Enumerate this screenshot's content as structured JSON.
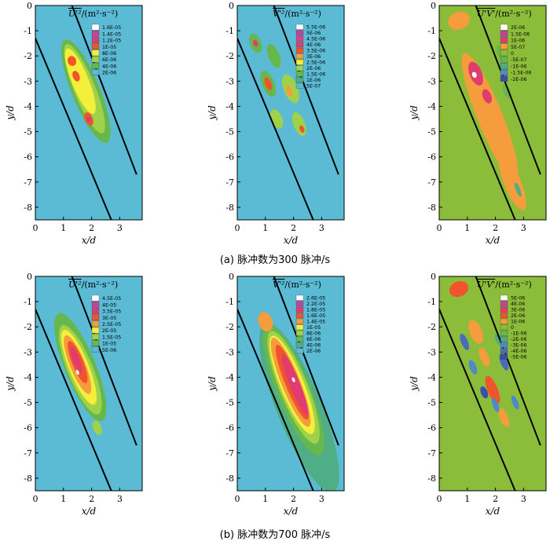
{
  "captions": {
    "a": "(a) 脉冲数为300 脉冲/s",
    "b": "(b) 脉冲数为700 脉冲/s"
  },
  "axes": {
    "xlabel": "x/d",
    "ylabel": "y/d"
  },
  "colors": {
    "plot_bg_uu_vv": "#5bbad4",
    "plot_bg_uv": "#8cbd3a",
    "boundary_line": "#000000"
  },
  "chart_data": [
    {
      "id": "a-uu",
      "type": "contour",
      "panel": "a",
      "quantity": "U'²",
      "legend_title": "/(m²·s⁻²)",
      "xlim": [
        0,
        3.8
      ],
      "ylim": [
        -8.5,
        0
      ],
      "xticks": [
        "0",
        "1",
        "2",
        "3"
      ],
      "yticks": [
        "0",
        "-1",
        "-2",
        "-3",
        "-4",
        "-5",
        "-6",
        "-7",
        "-8"
      ],
      "levels": [
        "1.6E-05",
        "1.4E-05",
        "1.2E-05",
        "1E-05",
        "8E-06",
        "6E-06",
        "4E-06",
        "2E-06"
      ],
      "level_colors": [
        "#ffffff",
        "#c0449c",
        "#e03c70",
        "#f0542c",
        "#f3ef3a",
        "#9fd24a",
        "#66b84c",
        "#5bbad4"
      ],
      "boundary_lines": [
        {
          "x": [
            0,
            2.7
          ],
          "y": [
            -1.3,
            -8.5
          ]
        },
        {
          "x": [
            1.3,
            3.6
          ],
          "y": [
            0,
            -6.7
          ]
        }
      ]
    },
    {
      "id": "a-vv",
      "type": "contour",
      "panel": "a",
      "quantity": "V'²",
      "legend_title": "/(m²·s⁻²)",
      "xlim": [
        0,
        3.8
      ],
      "ylim": [
        -8.5,
        0
      ],
      "xticks": [
        "0",
        "1",
        "2",
        "3"
      ],
      "yticks": [
        "0",
        "-1",
        "-2",
        "-3",
        "-4",
        "-5",
        "-6",
        "-7",
        "-8"
      ],
      "levels": [
        "5.5E-06",
        "5E-06",
        "4.5E-06",
        "4E-06",
        "3.5E-06",
        "3E-06",
        "2.5E-06",
        "2E-06",
        "1.5E-06",
        "1E-06",
        "5E-07"
      ],
      "level_colors": [
        "#ffffff",
        "#c0449c",
        "#d44688",
        "#e03c70",
        "#f0542c",
        "#f59c3c",
        "#f3ef3a",
        "#9fd24a",
        "#66b84c",
        "#4fae86",
        "#5bbad4"
      ],
      "boundary_lines": [
        {
          "x": [
            0,
            2.7
          ],
          "y": [
            -1.3,
            -8.5
          ]
        },
        {
          "x": [
            1.3,
            3.6
          ],
          "y": [
            0,
            -6.7
          ]
        }
      ]
    },
    {
      "id": "a-uv",
      "type": "contour",
      "panel": "a",
      "quantity": "U'V'",
      "legend_title": "/(m²·s⁻²)",
      "xlim": [
        0,
        3.8
      ],
      "ylim": [
        -8.5,
        0
      ],
      "xticks": [
        "0",
        "1",
        "2",
        "3"
      ],
      "yticks": [
        "0",
        "-1",
        "-2",
        "-3",
        "-4",
        "-5",
        "-6",
        "-7",
        "-8"
      ],
      "levels": [
        "2E-06",
        "1.5E-06",
        "1E-06",
        "5E-07",
        "0",
        "-5E-07",
        "-1E-06",
        "-1.5E-06",
        "-2E-06"
      ],
      "level_colors": [
        "#ffffff",
        "#c0449c",
        "#e03c70",
        "#f59c3c",
        "#8cbd3a",
        "#66b84c",
        "#4fae86",
        "#4f8ac8",
        "#3a4fa8"
      ],
      "boundary_lines": [
        {
          "x": [
            0,
            2.7
          ],
          "y": [
            -1.3,
            -8.5
          ]
        },
        {
          "x": [
            1.3,
            3.6
          ],
          "y": [
            0,
            -6.7
          ]
        }
      ]
    },
    {
      "id": "b-uu",
      "type": "contour",
      "panel": "b",
      "quantity": "U'²",
      "legend_title": "/(m²·s⁻²)",
      "xlim": [
        0,
        3.8
      ],
      "ylim": [
        -8.5,
        0
      ],
      "xticks": [
        "0",
        "1",
        "2",
        "3"
      ],
      "yticks": [
        "0",
        "-1",
        "-2",
        "-3",
        "-4",
        "-5",
        "-6",
        "-7",
        "-8"
      ],
      "levels": [
        "4.5E-05",
        "4E-05",
        "3.5E-05",
        "3E-05",
        "2.5E-05",
        "2E-05",
        "1.5E-05",
        "1E-05",
        "5E-06"
      ],
      "level_colors": [
        "#ffffff",
        "#c0449c",
        "#e03c70",
        "#f0542c",
        "#f59c3c",
        "#f3ef3a",
        "#9fd24a",
        "#66b84c",
        "#5bbad4"
      ],
      "boundary_lines": [
        {
          "x": [
            0,
            2.7
          ],
          "y": [
            -1.3,
            -8.5
          ]
        },
        {
          "x": [
            1.3,
            3.6
          ],
          "y": [
            0,
            -6.7
          ]
        }
      ]
    },
    {
      "id": "b-vv",
      "type": "contour",
      "panel": "b",
      "quantity": "V'²",
      "legend_title": "/(m²·s⁻²)",
      "xlim": [
        0,
        3.8
      ],
      "ylim": [
        -8.5,
        0
      ],
      "xticks": [
        "0",
        "1",
        "2",
        "3"
      ],
      "yticks": [
        "0",
        "-1",
        "-2",
        "-3",
        "-4",
        "-5",
        "-6",
        "-7",
        "-8"
      ],
      "levels": [
        "2.6E-05",
        "2.2E-05",
        "1.8E-05",
        "1.6E-05",
        "1.4E-05",
        "1E-05",
        "8E-06",
        "6E-06",
        "4E-06",
        "2E-06"
      ],
      "level_colors": [
        "#ffffff",
        "#c0449c",
        "#e03c70",
        "#f0542c",
        "#f59c3c",
        "#f3ef3a",
        "#9fd24a",
        "#66b84c",
        "#4fae86",
        "#5bbad4"
      ],
      "boundary_lines": [
        {
          "x": [
            0,
            2.7
          ],
          "y": [
            -1.3,
            -8.5
          ]
        },
        {
          "x": [
            1.3,
            3.6
          ],
          "y": [
            0,
            -6.7
          ]
        }
      ]
    },
    {
      "id": "b-uv",
      "type": "contour",
      "panel": "b",
      "quantity": "U'V'",
      "legend_title": "/(m²·s⁻²)",
      "xlim": [
        0,
        3.8
      ],
      "ylim": [
        -8.5,
        0
      ],
      "xticks": [
        "0",
        "1",
        "2",
        "3"
      ],
      "yticks": [
        "0",
        "-1",
        "-2",
        "-3",
        "-4",
        "-5",
        "-6",
        "-7",
        "-8"
      ],
      "levels": [
        "5E-06",
        "4E-06",
        "3E-06",
        "2E-06",
        "1E-06",
        "0",
        "-1E-06",
        "-2E-06",
        "-3E-06",
        "-4E-06",
        "-5E-06"
      ],
      "level_colors": [
        "#ffffff",
        "#c0449c",
        "#e03c70",
        "#f0542c",
        "#f59c3c",
        "#8cbd3a",
        "#66b84c",
        "#4fae86",
        "#4f8ac8",
        "#4a6cb8",
        "#3a4fa8"
      ],
      "boundary_lines": [
        {
          "x": [
            0,
            2.7
          ],
          "y": [
            -1.3,
            -8.5
          ]
        },
        {
          "x": [
            1.3,
            3.6
          ],
          "y": [
            0,
            -6.7
          ]
        }
      ]
    }
  ]
}
